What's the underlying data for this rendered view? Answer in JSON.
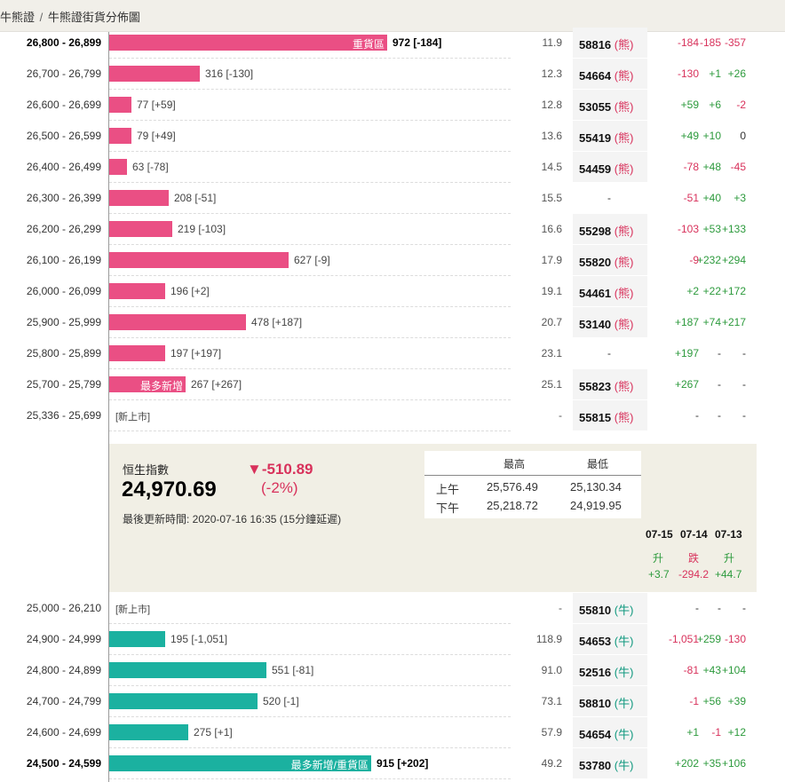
{
  "breadcrumb": {
    "parent": "牛熊證",
    "current": "牛熊證街貨分佈圖"
  },
  "bear_rows": [
    {
      "range": "26,800 - 26,899",
      "bold": true,
      "qty": "972 [-184]",
      "tag": "重貨區",
      "dist": "11.9",
      "code": "58816",
      "type": "(熊)",
      "c1": "-184",
      "c2": "-185",
      "c3": "-357"
    },
    {
      "range": "26,700 - 26,799",
      "bold": false,
      "qty": "316 [-130]",
      "tag": "",
      "dist": "12.3",
      "code": "54664",
      "type": "(熊)",
      "c1": "-130",
      "c2": "+1",
      "c3": "+26"
    },
    {
      "range": "26,600 - 26,699",
      "bold": false,
      "qty": "77 [+59]",
      "tag": "",
      "dist": "12.8",
      "code": "53055",
      "type": "(熊)",
      "c1": "+59",
      "c2": "+6",
      "c3": "-2"
    },
    {
      "range": "26,500 - 26,599",
      "bold": false,
      "qty": "79 [+49]",
      "tag": "",
      "dist": "13.6",
      "code": "55419",
      "type": "(熊)",
      "c1": "+49",
      "c2": "+10",
      "c3": "0"
    },
    {
      "range": "26,400 - 26,499",
      "bold": false,
      "qty": "63 [-78]",
      "tag": "",
      "dist": "14.5",
      "code": "54459",
      "type": "(熊)",
      "c1": "-78",
      "c2": "+48",
      "c3": "-45"
    },
    {
      "range": "26,300 - 26,399",
      "bold": false,
      "qty": "208 [-51]",
      "tag": "",
      "dist": "15.5",
      "code": "-",
      "type": "",
      "c1": "-51",
      "c2": "+40",
      "c3": "+3"
    },
    {
      "range": "26,200 - 26,299",
      "bold": false,
      "qty": "219 [-103]",
      "tag": "",
      "dist": "16.6",
      "code": "55298",
      "type": "(熊)",
      "c1": "-103",
      "c2": "+53",
      "c3": "+133"
    },
    {
      "range": "26,100 - 26,199",
      "bold": false,
      "qty": "627 [-9]",
      "tag": "",
      "dist": "17.9",
      "code": "55820",
      "type": "(熊)",
      "c1": "-9",
      "c2": "+232",
      "c3": "+294"
    },
    {
      "range": "26,000 - 26,099",
      "bold": false,
      "qty": "196 [+2]",
      "tag": "",
      "dist": "19.1",
      "code": "54461",
      "type": "(熊)",
      "c1": "+2",
      "c2": "+22",
      "c3": "+172"
    },
    {
      "range": "25,900 - 25,999",
      "bold": false,
      "qty": "478 [+187]",
      "tag": "",
      "dist": "20.7",
      "code": "53140",
      "type": "(熊)",
      "c1": "+187",
      "c2": "+74",
      "c3": "+217"
    },
    {
      "range": "25,800 - 25,899",
      "bold": false,
      "qty": "197 [+197]",
      "tag": "",
      "dist": "23.1",
      "code": "-",
      "type": "",
      "c1": "+197",
      "c2": "-",
      "c3": "-"
    },
    {
      "range": "25,700 - 25,799",
      "bold": false,
      "qty": "267 [+267]",
      "tag": "最多新增",
      "dist": "25.1",
      "code": "55823",
      "type": "(熊)",
      "c1": "+267",
      "c2": "-",
      "c3": "-"
    },
    {
      "range": "25,336 - 25,699",
      "bold": false,
      "qty": "",
      "tag": "",
      "newlist": "[新上市]",
      "dist": "-",
      "code": "55815",
      "type": "(熊)",
      "c1": "-",
      "c2": "-",
      "c3": "-"
    }
  ],
  "bear_values": [
    972,
    316,
    77,
    79,
    63,
    208,
    219,
    627,
    196,
    478,
    197,
    267,
    0
  ],
  "index": {
    "name": "恒生指數",
    "value": "24,970.69",
    "change": "▼-510.89",
    "pct": "(-2%)",
    "updated": "最後更新時間: 2020-07-16 16:35 (15分鐘延遲)",
    "hl_headers": {
      "high": "最高",
      "low": "最低"
    },
    "am_label": "上午",
    "am_high": "25,576.49",
    "am_low": "25,130.34",
    "pm_label": "下午",
    "pm_high": "25,218.72",
    "pm_low": "24,919.95"
  },
  "days": [
    {
      "date": "07-15",
      "dir": "升",
      "chg": "+3.7"
    },
    {
      "date": "07-14",
      "dir": "跌",
      "chg": "-294.2"
    },
    {
      "date": "07-13",
      "dir": "升",
      "chg": "+44.7"
    }
  ],
  "bull_rows": [
    {
      "range": "25,000 - 26,210",
      "bold": false,
      "qty": "",
      "tag": "",
      "newlist": "[新上市]",
      "dist": "-",
      "code": "55810",
      "type": "(牛)",
      "c1": "-",
      "c2": "-",
      "c3": "-"
    },
    {
      "range": "24,900 - 24,999",
      "bold": false,
      "qty": "195 [-1,051]",
      "tag": "",
      "dist": "118.9",
      "code": "54653",
      "type": "(牛)",
      "c1": "-1,051",
      "c2": "+259",
      "c3": "-130"
    },
    {
      "range": "24,800 - 24,899",
      "bold": false,
      "qty": "551 [-81]",
      "tag": "",
      "dist": "91.0",
      "code": "52516",
      "type": "(牛)",
      "c1": "-81",
      "c2": "+43",
      "c3": "+104"
    },
    {
      "range": "24,700 - 24,799",
      "bold": false,
      "qty": "520 [-1]",
      "tag": "",
      "dist": "73.1",
      "code": "58810",
      "type": "(牛)",
      "c1": "-1",
      "c2": "+56",
      "c3": "+39"
    },
    {
      "range": "24,600 - 24,699",
      "bold": false,
      "qty": "275 [+1]",
      "tag": "",
      "dist": "57.9",
      "code": "54654",
      "type": "(牛)",
      "c1": "+1",
      "c2": "-1",
      "c3": "+12"
    },
    {
      "range": "24,500 - 24,599",
      "bold": true,
      "qty": "915 [+202]",
      "tag": "最多新增/重貨區",
      "dist": "49.2",
      "code": "53780",
      "type": "(牛)",
      "c1": "+202",
      "c2": "+35",
      "c3": "+106"
    }
  ],
  "bull_values": [
    0,
    195,
    551,
    520,
    275,
    915
  ],
  "colors": {
    "bear": "#ea4f84",
    "bull": "#1bb1a0",
    "neg": "#d8315b",
    "pos": "#2c9a3c",
    "panel": "#f1efe5"
  }
}
